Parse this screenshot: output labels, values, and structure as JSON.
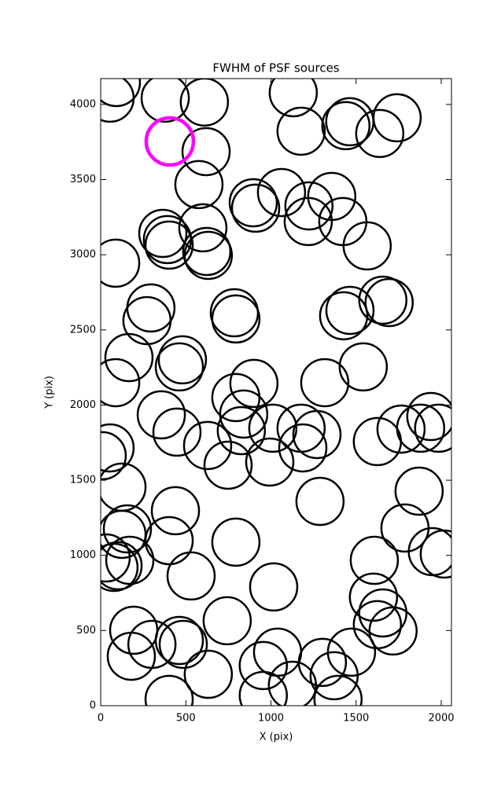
{
  "chart_data": {
    "type": "scatter",
    "title": "FWHM of PSF sources",
    "x_label": "X (pix)",
    "y_label": "Y (pix)",
    "xlim": [
      0,
      2060
    ],
    "ylim": [
      0,
      4172
    ],
    "xticks": [
      0,
      500,
      1000,
      1500,
      2000
    ],
    "yticks": [
      0,
      500,
      1000,
      1500,
      2000,
      2500,
      3000,
      3500,
      4000
    ],
    "series": [
      {
        "color": "#000000",
        "x": [
          92,
          55,
          379,
          609,
          1131,
          1177,
          1440,
          1463,
          1639,
          1741,
          619,
          577,
          896,
          910,
          1062,
          1223,
          1219,
          1357,
          1422,
          1565,
          600,
          365,
          392,
          402,
          623,
          632,
          88,
          295,
          272,
          785,
          794,
          1464,
          1427,
          1657,
          1694,
          166,
          88,
          480,
          462,
          1542,
          1316,
          900,
          794,
          356,
          840,
          826,
          448,
          55,
          9,
          125,
          628,
          748,
          1011,
          993,
          1177,
          1187,
          1270,
          1625,
          1764,
          1879,
          1939,
          1985,
          1870,
          1288,
          439,
          157,
          125,
          402,
          794,
          1787,
          1948,
          2018,
          171,
          102,
          78,
          32,
          1607,
          531,
          1016,
          1602,
          1657,
          1625,
          1717,
          743,
          194,
          301,
          180,
          462,
          485,
          1039,
          955,
          1473,
          1302,
          632,
          1126,
          1371,
          955,
          1394,
          402
        ],
        "y": [
          4146,
          4042,
          4042,
          4016,
          4078,
          3822,
          3859,
          3885,
          3807,
          3911,
          3686,
          3467,
          3346,
          3310,
          3414,
          3325,
          3221,
          3388,
          3221,
          3059,
          3179,
          3142,
          3101,
          3064,
          3022,
          2996,
          2944,
          2646,
          2562,
          2614,
          2573,
          2630,
          2594,
          2698,
          2682,
          2316,
          2149,
          2301,
          2254,
          2254,
          2149,
          2144,
          2050,
          1935,
          1940,
          1830,
          1820,
          1715,
          1663,
          1454,
          1731,
          1600,
          1846,
          1621,
          1846,
          1715,
          1804,
          1757,
          1840,
          1846,
          1924,
          1846,
          1427,
          1359,
          1297,
          1176,
          1140,
          1098,
          1088,
          1182,
          1025,
          1009,
          967,
          931,
          920,
          983,
          967,
          863,
          790,
          722,
          617,
          539,
          497,
          565,
          502,
          408,
          329,
          434,
          408,
          356,
          267,
          356,
          288,
          209,
          136,
          199,
          68,
          42,
          42
        ]
      },
      {
        "color": "#ff00ff",
        "x": [
          406
        ],
        "y": [
          3754
        ]
      }
    ]
  }
}
